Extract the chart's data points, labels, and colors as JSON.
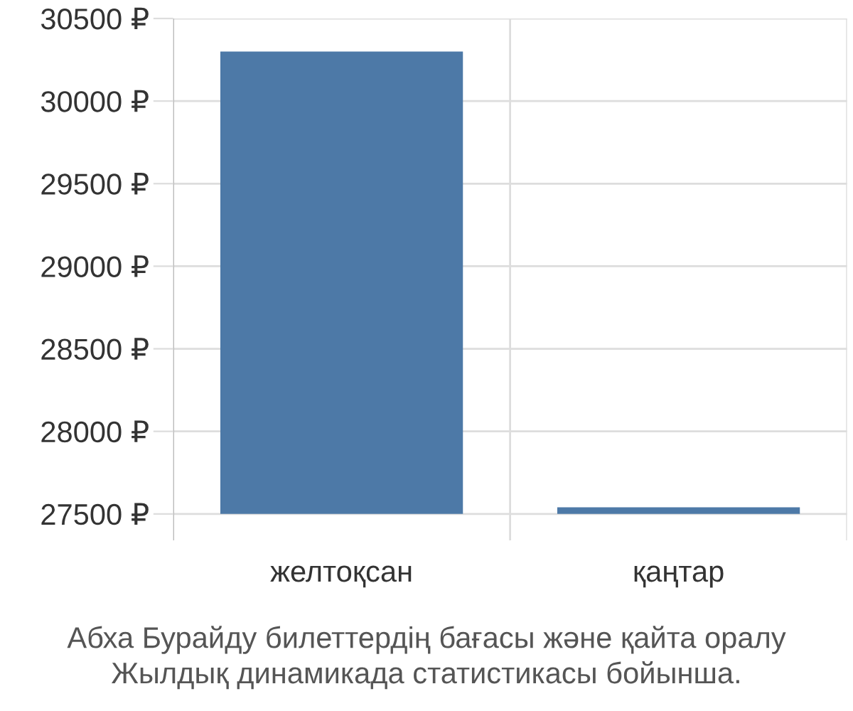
{
  "chart_data": {
    "type": "bar",
    "title": "Абха Бурайду билеттердің бағасы және қайта оралу",
    "subtitle": "Жылдық динамикада статистикасы бойынша.",
    "categories": [
      "желтоқсан",
      "қаңтар"
    ],
    "values": [
      2800,
      40
    ],
    "base": [
      27500,
      27500
    ],
    "color": "#4d79a7",
    "ylim": [
      27340,
      30500
    ],
    "yticks": [
      {
        "value": 27500,
        "label": "27500 ₽"
      },
      {
        "value": 28000,
        "label": "28000 ₽"
      },
      {
        "value": 28500,
        "label": "28500 ₽"
      },
      {
        "value": 29000,
        "label": "29000 ₽"
      },
      {
        "value": 29500,
        "label": "29500 ₽"
      },
      {
        "value": 30000,
        "label": "30000 ₽"
      },
      {
        "value": 30500,
        "label": "30500 ₽"
      }
    ],
    "grid": true
  }
}
